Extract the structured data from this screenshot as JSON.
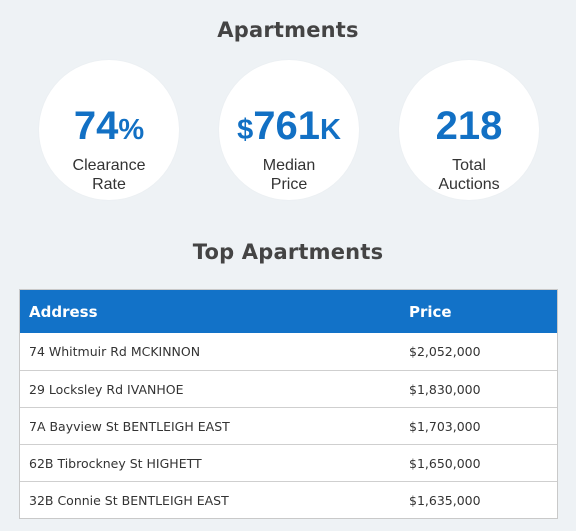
{
  "section_title": "Apartments",
  "stats": [
    {
      "value": "74",
      "suffix": "%",
      "label_line1": "Clearance",
      "label_line2": "Rate"
    },
    {
      "prefix": "$",
      "value": "761",
      "suffix": "K",
      "label_line1": "Median",
      "label_line2": "Price"
    },
    {
      "value": "218",
      "label_line1": "Total",
      "label_line2": "Auctions"
    }
  ],
  "top_title": "Top Apartments",
  "table": {
    "headers": {
      "address": "Address",
      "price": "Price"
    },
    "rows": [
      {
        "address": "74 Whitmuir Rd MCKINNON",
        "price": "$2,052,000"
      },
      {
        "address": "29 Locksley Rd IVANHOE",
        "price": "$1,830,000"
      },
      {
        "address": "7A Bayview St BENTLEIGH EAST",
        "price": "$1,703,000"
      },
      {
        "address": "62B Tibrockney St HIGHETT",
        "price": "$1,650,000"
      },
      {
        "address": "32B Connie St BENTLEIGH EAST",
        "price": "$1,635,000"
      }
    ]
  },
  "colors": {
    "accent": "#1270c4",
    "header_bg": "#1272c8",
    "page_bg": "#eef2f5"
  }
}
